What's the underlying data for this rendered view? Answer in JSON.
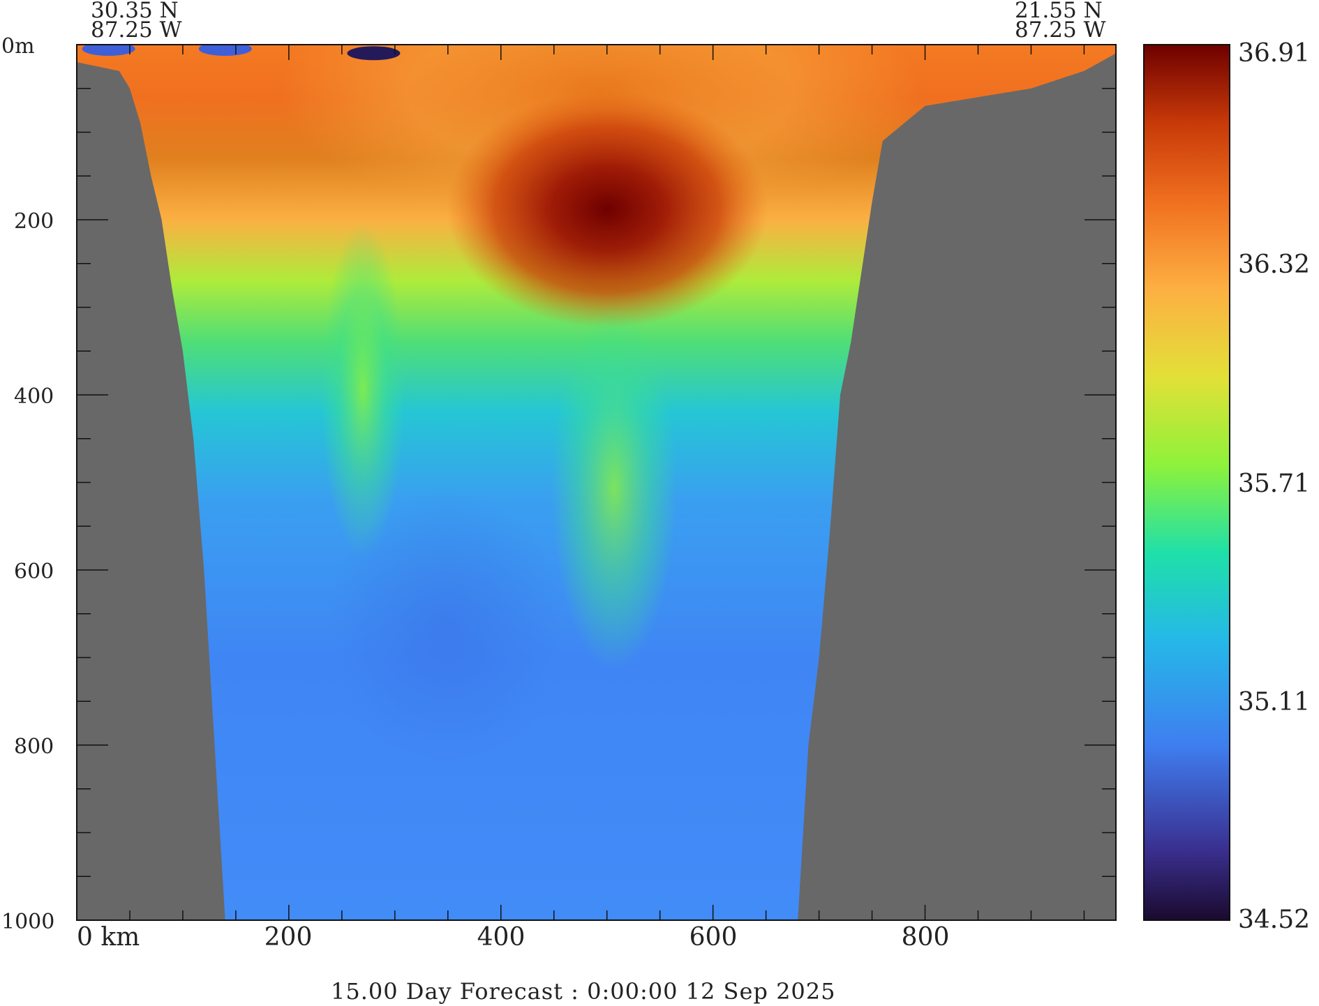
{
  "section": {
    "start_lat": "30.35 N",
    "start_lon": "87.25 W",
    "end_lat": "21.55 N",
    "end_lon": "87.25 W"
  },
  "footer": "15.00 Day Forecast :  0:00:00  12 Sep 2025",
  "chart_data": {
    "type": "heatmap",
    "title": "",
    "xlabel": "",
    "ylabel": "",
    "x_unit": "km",
    "y_unit": "m",
    "xlim": [
      0,
      980
    ],
    "ylim": [
      1000,
      0
    ],
    "x_ticks": [
      0,
      200,
      400,
      600,
      800
    ],
    "x_tick_labels": [
      "0 km",
      "200",
      "400",
      "600",
      "800"
    ],
    "y_ticks": [
      0,
      200,
      400,
      600,
      800,
      1000
    ],
    "y_tick_labels": [
      "0m",
      "200",
      "400",
      "600",
      "800",
      "1000"
    ],
    "colorbar": {
      "min": 34.52,
      "max": 36.91,
      "tick_values": [
        36.91,
        36.32,
        35.71,
        35.11,
        34.52
      ],
      "tick_labels": [
        "36.91",
        "36.32",
        "35.71",
        "35.11",
        "34.52"
      ],
      "colors": [
        "#1a0a2e",
        "#3a2f8f",
        "#3f7ef0",
        "#25b8e8",
        "#1fe0a8",
        "#8ef23a",
        "#e2e038",
        "#fdb042",
        "#f07020",
        "#c83a08",
        "#6e0000"
      ]
    },
    "land_color": "#686868",
    "bottom_profile": {
      "left_x": [
        0,
        40,
        50,
        60,
        70,
        80,
        90,
        100,
        110,
        120,
        130,
        140
      ],
      "left_depth": [
        20,
        30,
        50,
        90,
        150,
        200,
        280,
        350,
        450,
        600,
        800,
        1000
      ],
      "right_x": [
        680,
        690,
        700,
        710,
        720,
        730,
        740,
        750,
        760,
        780,
        800,
        850,
        900,
        950,
        980
      ],
      "right_depth": [
        1000,
        800,
        700,
        560,
        400,
        340,
        260,
        180,
        110,
        90,
        70,
        60,
        50,
        30,
        10
      ]
    },
    "features": [
      {
        "kind": "salinity maximum core",
        "x": 490,
        "depth": 190,
        "value": 36.9
      },
      {
        "kind": "fresh surface patch",
        "x": 30,
        "depth": 0,
        "value": 34.7
      },
      {
        "kind": "fresh surface patch",
        "x": 140,
        "depth": 0,
        "value": 34.7
      },
      {
        "kind": "fresh surface patch",
        "x": 280,
        "depth": 5,
        "value": 34.5
      }
    ]
  }
}
